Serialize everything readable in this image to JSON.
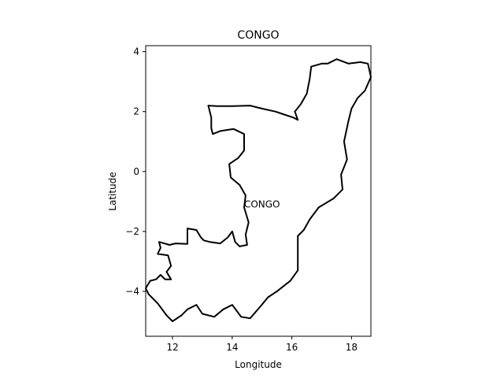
{
  "chart_data": {
    "type": "map",
    "title": "CONGO",
    "xlabel": "Longitude",
    "ylabel": "Latitude",
    "xlim": [
      11.1,
      18.65
    ],
    "ylim": [
      -5.5,
      4.2
    ],
    "xticks": [
      12,
      14,
      16,
      18
    ],
    "yticks": [
      4,
      2,
      0,
      -2,
      -4
    ],
    "grid": false,
    "region_label": {
      "text": "CONGO",
      "lon": 15.0,
      "lat": -1.1
    },
    "outline": [
      [
        11.1,
        -3.9
      ],
      [
        11.25,
        -3.65
      ],
      [
        11.45,
        -3.6
      ],
      [
        11.6,
        -3.45
      ],
      [
        11.75,
        -3.6
      ],
      [
        11.95,
        -3.6
      ],
      [
        11.8,
        -3.35
      ],
      [
        11.95,
        -3.15
      ],
      [
        11.85,
        -2.8
      ],
      [
        11.5,
        -2.75
      ],
      [
        11.6,
        -2.55
      ],
      [
        11.55,
        -2.35
      ],
      [
        11.9,
        -2.45
      ],
      [
        12.1,
        -2.4
      ],
      [
        12.5,
        -2.42
      ],
      [
        12.5,
        -2.15
      ],
      [
        12.5,
        -1.9
      ],
      [
        12.8,
        -1.95
      ],
      [
        12.95,
        -2.2
      ],
      [
        13.05,
        -2.3
      ],
      [
        13.25,
        -2.35
      ],
      [
        13.6,
        -2.4
      ],
      [
        13.85,
        -2.2
      ],
      [
        14.0,
        -2.0
      ],
      [
        14.1,
        -2.35
      ],
      [
        14.25,
        -2.5
      ],
      [
        14.5,
        -2.45
      ],
      [
        14.45,
        -2.1
      ],
      [
        14.55,
        -1.7
      ],
      [
        14.4,
        -1.2
      ],
      [
        14.45,
        -0.8
      ],
      [
        14.25,
        -0.45
      ],
      [
        13.95,
        -0.2
      ],
      [
        13.9,
        0.25
      ],
      [
        14.2,
        0.45
      ],
      [
        14.4,
        0.7
      ],
      [
        14.4,
        1.25
      ],
      [
        14.05,
        1.42
      ],
      [
        13.6,
        1.35
      ],
      [
        13.35,
        1.25
      ],
      [
        13.3,
        1.45
      ],
      [
        13.3,
        1.8
      ],
      [
        13.2,
        2.2
      ],
      [
        13.5,
        2.18
      ],
      [
        14.0,
        2.18
      ],
      [
        14.6,
        2.2
      ],
      [
        15.0,
        2.1
      ],
      [
        15.45,
        2.0
      ],
      [
        15.75,
        1.9
      ],
      [
        16.05,
        1.8
      ],
      [
        16.2,
        1.72
      ],
      [
        16.1,
        2.0
      ],
      [
        16.3,
        2.25
      ],
      [
        16.5,
        2.6
      ],
      [
        16.6,
        3.1
      ],
      [
        16.65,
        3.5
      ],
      [
        17.0,
        3.6
      ],
      [
        17.2,
        3.6
      ],
      [
        17.5,
        3.75
      ],
      [
        17.9,
        3.6
      ],
      [
        18.3,
        3.65
      ],
      [
        18.55,
        3.6
      ],
      [
        18.65,
        3.15
      ],
      [
        18.45,
        2.7
      ],
      [
        18.2,
        2.45
      ],
      [
        18.0,
        2.1
      ],
      [
        17.9,
        1.7
      ],
      [
        17.75,
        1.0
      ],
      [
        17.85,
        0.4
      ],
      [
        17.65,
        -0.1
      ],
      [
        17.7,
        -0.6
      ],
      [
        17.4,
        -0.9
      ],
      [
        16.9,
        -1.2
      ],
      [
        16.6,
        -1.6
      ],
      [
        16.4,
        -1.95
      ],
      [
        16.2,
        -2.15
      ],
      [
        16.2,
        -2.6
      ],
      [
        16.2,
        -3.3
      ],
      [
        15.95,
        -3.65
      ],
      [
        15.5,
        -4.0
      ],
      [
        15.2,
        -4.2
      ],
      [
        14.95,
        -4.5
      ],
      [
        14.6,
        -4.9
      ],
      [
        14.3,
        -4.85
      ],
      [
        14.0,
        -4.45
      ],
      [
        13.7,
        -4.6
      ],
      [
        13.4,
        -4.85
      ],
      [
        13.0,
        -4.75
      ],
      [
        12.8,
        -4.45
      ],
      [
        12.5,
        -4.6
      ],
      [
        12.3,
        -4.8
      ],
      [
        12.0,
        -5.0
      ],
      [
        11.8,
        -4.8
      ],
      [
        11.5,
        -4.4
      ],
      [
        11.2,
        -4.1
      ],
      [
        11.1,
        -3.9
      ]
    ]
  }
}
